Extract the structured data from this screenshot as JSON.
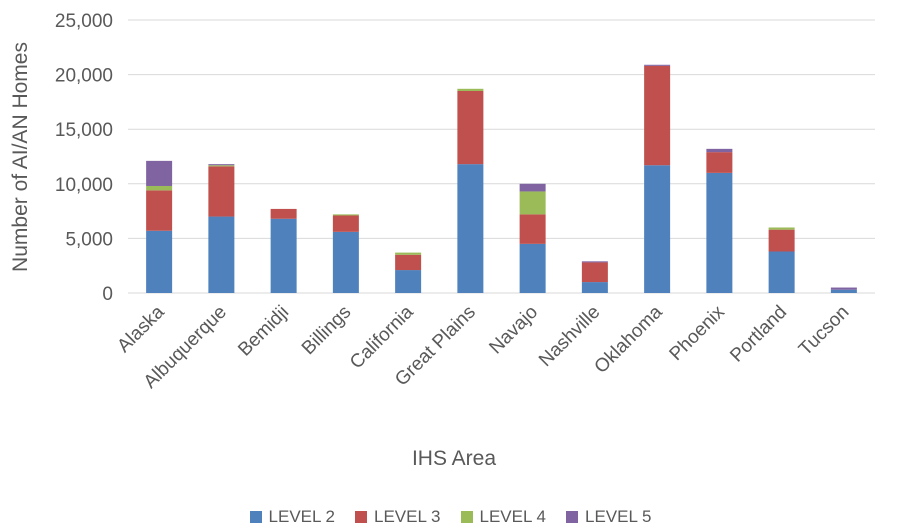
{
  "chart_data": {
    "type": "bar",
    "stacked": true,
    "categories": [
      "Alaska",
      "Albuquerque",
      "Bemidji",
      "Billings",
      "California",
      "Great Plains",
      "Navajo",
      "Nashville",
      "Oklahoma",
      "Phoenix",
      "Portland",
      "Tucson"
    ],
    "series": [
      {
        "name": "LEVEL 2",
        "color": "#4F81BD",
        "values": [
          5700,
          7000,
          6800,
          5600,
          2100,
          11800,
          4500,
          1000,
          11700,
          11000,
          3800,
          300
        ]
      },
      {
        "name": "LEVEL 3",
        "color": "#C0504D",
        "values": [
          3700,
          4600,
          900,
          1500,
          1400,
          6700,
          2700,
          1800,
          9100,
          1900,
          2000,
          0
        ]
      },
      {
        "name": "LEVEL 4",
        "color": "#9BBB59",
        "values": [
          400,
          100,
          0,
          100,
          200,
          200,
          2100,
          0,
          0,
          0,
          200,
          0
        ]
      },
      {
        "name": "LEVEL 5",
        "color": "#8064A2",
        "values": [
          2300,
          100,
          0,
          0,
          0,
          0,
          700,
          100,
          100,
          300,
          0,
          200
        ]
      }
    ],
    "title": "",
    "xlabel": "IHS Area",
    "ylabel": "Number of AI/AN Homes",
    "ylim": [
      0,
      25000
    ],
    "yticks": [
      "0",
      "5,000",
      "10,000",
      "15,000",
      "20,000",
      "25,000"
    ],
    "grid": true,
    "legend_position": "bottom"
  }
}
